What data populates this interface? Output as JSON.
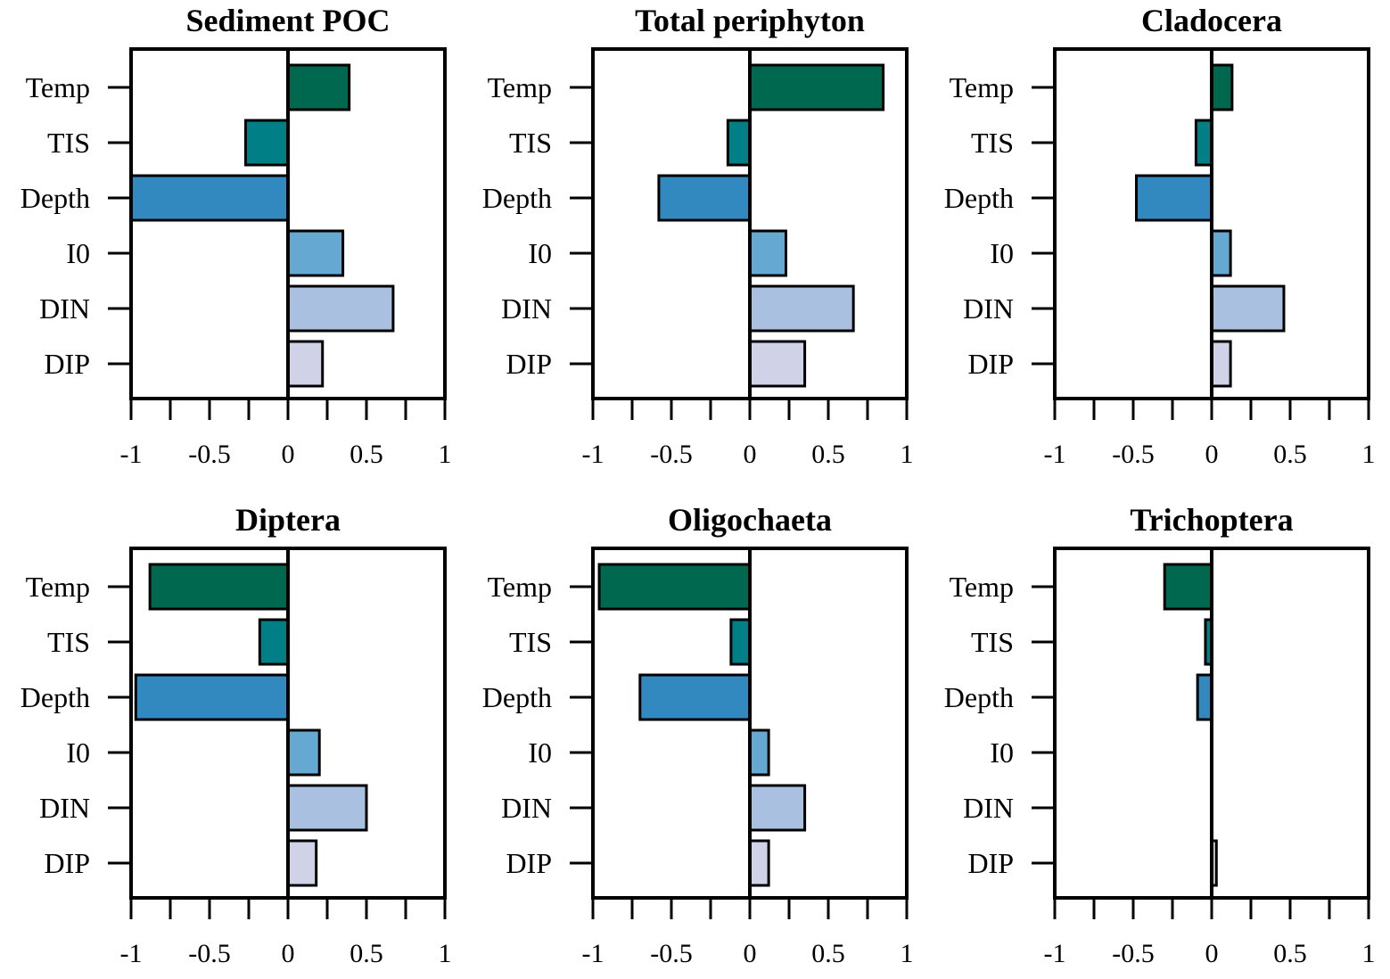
{
  "chart_data": [
    {
      "type": "bar",
      "orientation": "horizontal",
      "title": "Sediment POC",
      "categories": [
        "Temp",
        "TIS",
        "Depth",
        "I0",
        "DIN",
        "DIP"
      ],
      "values": [
        0.39,
        -0.27,
        -1.0,
        0.35,
        0.67,
        0.22
      ],
      "xlim": [
        -1,
        1
      ],
      "xticks": [
        "-1",
        "-0.5",
        "0",
        "0.5",
        "1"
      ]
    },
    {
      "type": "bar",
      "orientation": "horizontal",
      "title": "Total periphyton",
      "categories": [
        "Temp",
        "TIS",
        "Depth",
        "I0",
        "DIN",
        "DIP"
      ],
      "values": [
        0.85,
        -0.14,
        -0.58,
        0.23,
        0.66,
        0.35
      ],
      "xlim": [
        -1,
        1
      ],
      "xticks": [
        "-1",
        "-0.5",
        "0",
        "0.5",
        "1"
      ]
    },
    {
      "type": "bar",
      "orientation": "horizontal",
      "title": "Cladocera",
      "categories": [
        "Temp",
        "TIS",
        "Depth",
        "I0",
        "DIN",
        "DIP"
      ],
      "values": [
        0.13,
        -0.1,
        -0.48,
        0.12,
        0.46,
        0.12
      ],
      "xlim": [
        -1,
        1
      ],
      "xticks": [
        "-1",
        "-0.5",
        "0",
        "0.5",
        "1"
      ]
    },
    {
      "type": "bar",
      "orientation": "horizontal",
      "title": "Diptera",
      "categories": [
        "Temp",
        "TIS",
        "Depth",
        "I0",
        "DIN",
        "DIP"
      ],
      "values": [
        -0.88,
        -0.18,
        -0.97,
        0.2,
        0.5,
        0.18
      ],
      "xlim": [
        -1,
        1
      ],
      "xticks": [
        "-1",
        "-0.5",
        "0",
        "0.5",
        "1"
      ]
    },
    {
      "type": "bar",
      "orientation": "horizontal",
      "title": "Oligochaeta",
      "categories": [
        "Temp",
        "TIS",
        "Depth",
        "I0",
        "DIN",
        "DIP"
      ],
      "values": [
        -0.96,
        -0.12,
        -0.7,
        0.12,
        0.35,
        0.12
      ],
      "xlim": [
        -1,
        1
      ],
      "xticks": [
        "-1",
        "-0.5",
        "0",
        "0.5",
        "1"
      ]
    },
    {
      "type": "bar",
      "orientation": "horizontal",
      "title": "Trichoptera",
      "categories": [
        "Temp",
        "TIS",
        "Depth",
        "I0",
        "DIN",
        "DIP"
      ],
      "values": [
        -0.3,
        -0.04,
        -0.09,
        0.0,
        0.0,
        0.03
      ],
      "xlim": [
        -1,
        1
      ],
      "xticks": [
        "-1",
        "-0.5",
        "0",
        "0.5",
        "1"
      ]
    }
  ],
  "colors": {
    "Temp": "#00684f",
    "TIS": "#007f86",
    "Depth": "#3189c0",
    "I0": "#65a9d2",
    "DIN": "#a9c0e0",
    "DIP": "#d0d2e7",
    "axis": "#000000",
    "background": "#ffffff"
  }
}
